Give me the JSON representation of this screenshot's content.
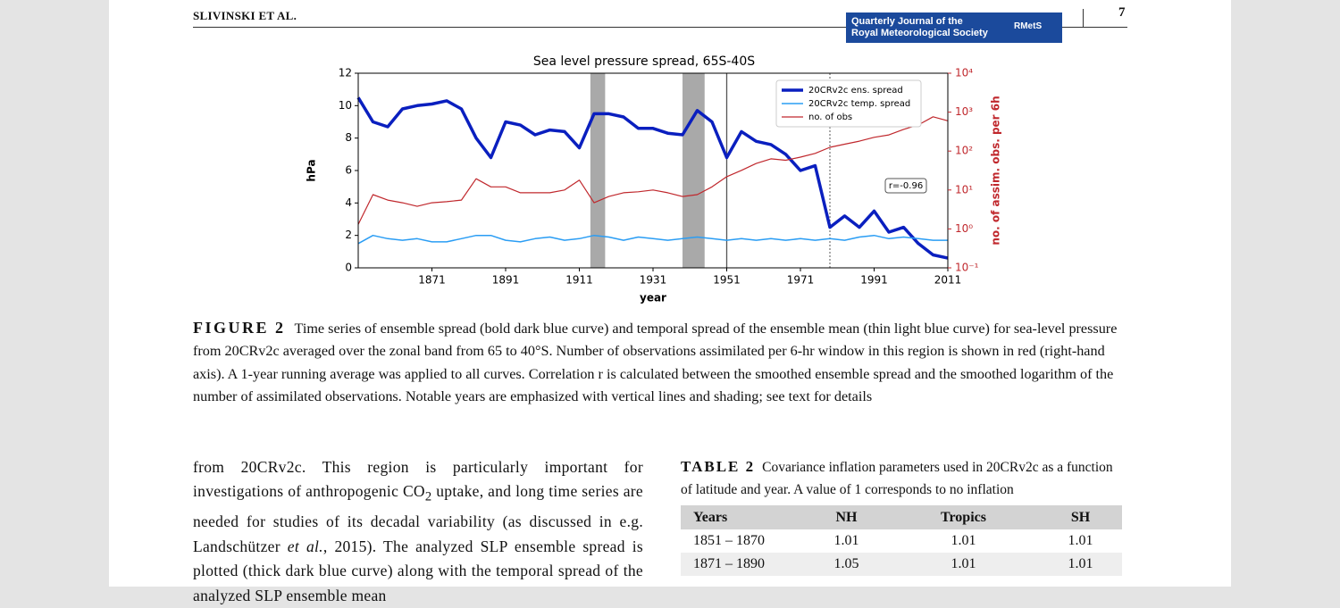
{
  "header": {
    "author": "SLIVINSKI ET AL.",
    "journal_line1": "Quarterly Journal of the",
    "journal_line2": "Royal Meteorological Society",
    "logo": "RMetS",
    "page": "7"
  },
  "chart_data": {
    "type": "line",
    "title": "Sea level pressure spread, 65S-40S",
    "xlabel": "year",
    "ylabel": "hPa",
    "y2label": "no. of assim. obs. per 6h",
    "annotation": "r=-0.96",
    "xlim": [
      1851,
      2011
    ],
    "xticks": [
      1871,
      1891,
      1911,
      1931,
      1951,
      1971,
      1991,
      2011
    ],
    "ylim": [
      0,
      12
    ],
    "yticks": [
      0,
      2,
      4,
      6,
      8,
      10,
      12
    ],
    "y2lim": [
      0.1,
      10000
    ],
    "y2_log": true,
    "y2ticks": [
      {
        "value": 0.1,
        "label": "10⁻¹"
      },
      {
        "value": 1,
        "label": "10⁰"
      },
      {
        "value": 10,
        "label": "10¹"
      },
      {
        "value": 100,
        "label": "10²"
      },
      {
        "value": 1000,
        "label": "10³"
      },
      {
        "value": 10000,
        "label": "10⁴"
      }
    ],
    "legend": "upper right",
    "shaded_spans": [
      [
        1914,
        1918
      ],
      [
        1939,
        1945
      ]
    ],
    "vlines": [
      {
        "x": 1951,
        "style": "solid"
      },
      {
        "x": 1979,
        "style": "dotted"
      }
    ],
    "x": [
      1851,
      1855,
      1859,
      1863,
      1867,
      1871,
      1875,
      1879,
      1883,
      1887,
      1891,
      1895,
      1899,
      1903,
      1907,
      1911,
      1915,
      1919,
      1923,
      1927,
      1931,
      1935,
      1939,
      1943,
      1947,
      1951,
      1955,
      1959,
      1963,
      1967,
      1971,
      1975,
      1979,
      1983,
      1987,
      1991,
      1995,
      1999,
      2003,
      2007,
      2011
    ],
    "series": [
      {
        "name": "20CRv2c ens. spread",
        "color": "#0a1fbf",
        "width": 3.5,
        "values": [
          10.5,
          9.0,
          8.7,
          9.8,
          10.0,
          10.1,
          10.3,
          9.8,
          8.0,
          6.8,
          9.0,
          8.8,
          8.2,
          8.5,
          8.4,
          7.4,
          9.5,
          9.5,
          9.3,
          8.6,
          8.6,
          8.3,
          8.2,
          9.7,
          9.0,
          6.8,
          8.4,
          7.8,
          7.6,
          7.0,
          6.0,
          6.3,
          2.5,
          3.2,
          2.5,
          3.5,
          2.2,
          2.5,
          1.5,
          0.8,
          0.6
        ]
      },
      {
        "name": "20CRv2c temp. spread",
        "color": "#2a9df4",
        "width": 1.5,
        "values": [
          1.5,
          2.0,
          1.8,
          1.7,
          1.8,
          1.6,
          1.6,
          1.8,
          2.0,
          2.0,
          1.7,
          1.6,
          1.8,
          1.9,
          1.7,
          1.8,
          2.0,
          1.9,
          1.7,
          1.9,
          1.8,
          1.7,
          1.8,
          1.9,
          1.8,
          1.7,
          1.8,
          1.7,
          1.8,
          1.7,
          1.8,
          1.7,
          1.8,
          1.7,
          1.9,
          2.0,
          1.8,
          1.9,
          1.8,
          1.7,
          1.7
        ]
      },
      {
        "name": "no. of obs",
        "color": "#c0282d",
        "width": 1.2,
        "axis": "y2",
        "values": [
          1.3,
          7.6,
          5.5,
          4.7,
          3.8,
          4.7,
          5,
          5.5,
          19.5,
          12,
          12,
          8.5,
          8.5,
          8.5,
          10,
          18,
          4.7,
          6.8,
          8.5,
          9,
          10,
          8.5,
          6.8,
          7.6,
          12,
          22,
          32,
          48,
          63,
          58,
          70,
          87,
          125,
          150,
          180,
          225,
          260,
          360,
          470,
          760,
          600
        ]
      }
    ]
  },
  "figure": {
    "label": "FIGURE 2",
    "caption": "Time series of ensemble spread (bold dark blue curve) and temporal spread of the ensemble mean (thin light blue curve) for sea-level pressure from 20CRv2c averaged over the zonal band from 65 to 40°S. Number of observations assimilated per 6-hr window in this region is shown in red (right-hand axis). A 1-year running average was applied to all curves. Correlation r is calculated between the smoothed ensemble spread and the smoothed logarithm of the number of assimilated observations. Notable years are emphasized with vertical lines and shading; see text for details"
  },
  "body": {
    "parts": [
      "from 20CRv2c. This region is particularly important for investigations of anthropogenic CO",
      "2",
      " uptake, and long time series are needed for studies of its decadal variability (as discussed in e.g. Landschützer ",
      "et al.",
      ", 2015). The analyzed SLP ensemble spread is plotted (thick dark blue curve) along with the temporal spread of the analyzed SLP ensemble mean"
    ]
  },
  "table": {
    "label": "TABLE 2",
    "caption": "Covariance inflation parameters used in 20CRv2c as a function of latitude and year. A value of 1 corresponds to no inflation",
    "headers": [
      "Years",
      "NH",
      "Tropics",
      "SH"
    ],
    "rows": [
      [
        "1851 – 1870",
        "1.01",
        "1.01",
        "1.01"
      ],
      [
        "1871 – 1890",
        "1.05",
        "1.01",
        "1.01"
      ]
    ]
  }
}
